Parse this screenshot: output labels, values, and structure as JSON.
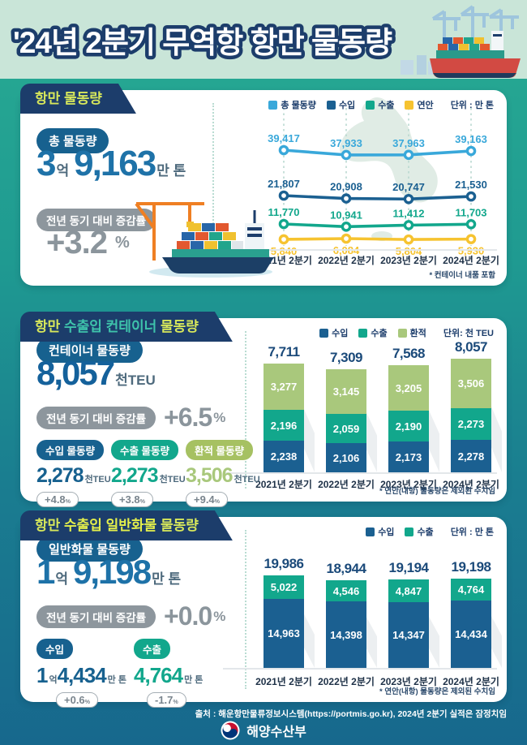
{
  "header": {
    "title": "'24년 2분기 무역항 항만 물동량"
  },
  "sections": [
    {
      "banner": [
        {
          "text": "항만 물동량"
        }
      ],
      "stat_label": "총 물동량",
      "total": {
        "n1": "3",
        "u1": "억",
        "n2": "9,163",
        "u2": "만 톤"
      },
      "yoy_label": "전년 동기 대비 증감률",
      "yoy": "+3.2",
      "yoy_unit": "%"
    },
    {
      "banner": [
        {
          "text": "항만 "
        },
        {
          "text": "수출입 컨테이너"
        },
        {
          "text": " 물동량"
        }
      ],
      "stat_label": "컨테이너 물동량",
      "total": {
        "n2": "8,057",
        "u2": "천TEU"
      },
      "yoy_label": "전년 동기 대비 증감률",
      "yoy": "+6.5",
      "yoy_unit": "%",
      "substats": [
        {
          "label": "수입 물동량",
          "n2": "2,278",
          "u2": "천TEU",
          "delta": "+4.8",
          "delta_unit": "%"
        },
        {
          "label": "수출 물동량",
          "n2": "2,273",
          "u2": "천TEU",
          "delta": "+3.8",
          "delta_unit": "%"
        },
        {
          "label": "환적 물동량",
          "n2": "3,506",
          "u2": "천TEU",
          "delta": "+9.4",
          "delta_unit": "%"
        }
      ]
    },
    {
      "banner": [
        {
          "text": "항만 "
        },
        {
          "text": "수출입 일반화물"
        },
        {
          "text": " 물동량"
        }
      ],
      "stat_label": "일반화물 물동량",
      "total": {
        "n1": "1",
        "u1": "억",
        "n2": "9,198",
        "u2": "만 톤"
      },
      "yoy_label": "전년 동기 대비 증감률",
      "yoy": "+0.0",
      "yoy_unit": "%",
      "substats": [
        {
          "label": "수입",
          "n1": "1",
          "u1": "억",
          "n2": "4,434",
          "u2": "만 톤",
          "delta": "+0.6",
          "delta_unit": "%"
        },
        {
          "label": "수출",
          "n2": "4,764",
          "u2": "만 톤",
          "delta": "-1.7",
          "delta_unit": "%"
        }
      ]
    }
  ],
  "chart_data": [
    {
      "type": "line",
      "title": "항만 물동량",
      "unit": "단위 : 만 톤",
      "categories": [
        "2021년 2분기",
        "2022년 2분기",
        "2023년 2분기",
        "2024년 2분기"
      ],
      "series": [
        {
          "name": "총 물동량",
          "color": "#39a8da",
          "values": [
            39417,
            37933,
            37963,
            39163
          ]
        },
        {
          "name": "수입",
          "color": "#1b6091",
          "values": [
            21807,
            20908,
            20747,
            21530
          ]
        },
        {
          "name": "수출",
          "color": "#12a78c",
          "values": [
            11770,
            10941,
            11412,
            11703
          ]
        },
        {
          "name": "연안",
          "color": "#f6c330",
          "values": [
            5840,
            6084,
            5804,
            5930
          ],
          "label_pos": "below"
        }
      ],
      "footnote": "* 컨테이너 내품 포함"
    },
    {
      "type": "stacked-bar",
      "title": "항만 수출입 컨테이너 물동량",
      "unit": "단위: 천 TEU",
      "categories": [
        "2021년 2분기",
        "2022년 2분기",
        "2023년 2분기",
        "2024년 2분기"
      ],
      "totals": [
        7711,
        7309,
        7568,
        8057
      ],
      "series": [
        {
          "name": "수입",
          "color": "#1b6091",
          "values": [
            2238,
            2106,
            2173,
            2278
          ]
        },
        {
          "name": "수출",
          "color": "#12a78c",
          "values": [
            2196,
            2059,
            2190,
            2273
          ]
        },
        {
          "name": "환적",
          "color": "#a9c87c",
          "values": [
            3277,
            3145,
            3205,
            3506
          ]
        }
      ],
      "footnote": "* 연안(내항) 물동량은 제외된 수치임"
    },
    {
      "type": "stacked-bar",
      "title": "항만 수출입 일반화물 물동량",
      "unit": "단위 : 만 톤",
      "categories": [
        "2021년 2분기",
        "2022년 2분기",
        "2023년 2분기",
        "2024년 2분기"
      ],
      "totals": [
        19986,
        18944,
        19194,
        19198
      ],
      "series": [
        {
          "name": "수입",
          "color": "#1b6091",
          "values": [
            14963,
            14398,
            14347,
            14434
          ]
        },
        {
          "name": "수출",
          "color": "#12a78c",
          "values": [
            5022,
            4546,
            4847,
            4764
          ]
        }
      ],
      "footnote": "* 연안(내항) 물동량은 제외된 수치임"
    }
  ],
  "footer": {
    "source": "출처 : 해운항만물류정보시스템(https://portmis.go.kr), 2024년 2분기 실적은 잠정치임",
    "ministry": "해양수산부"
  }
}
